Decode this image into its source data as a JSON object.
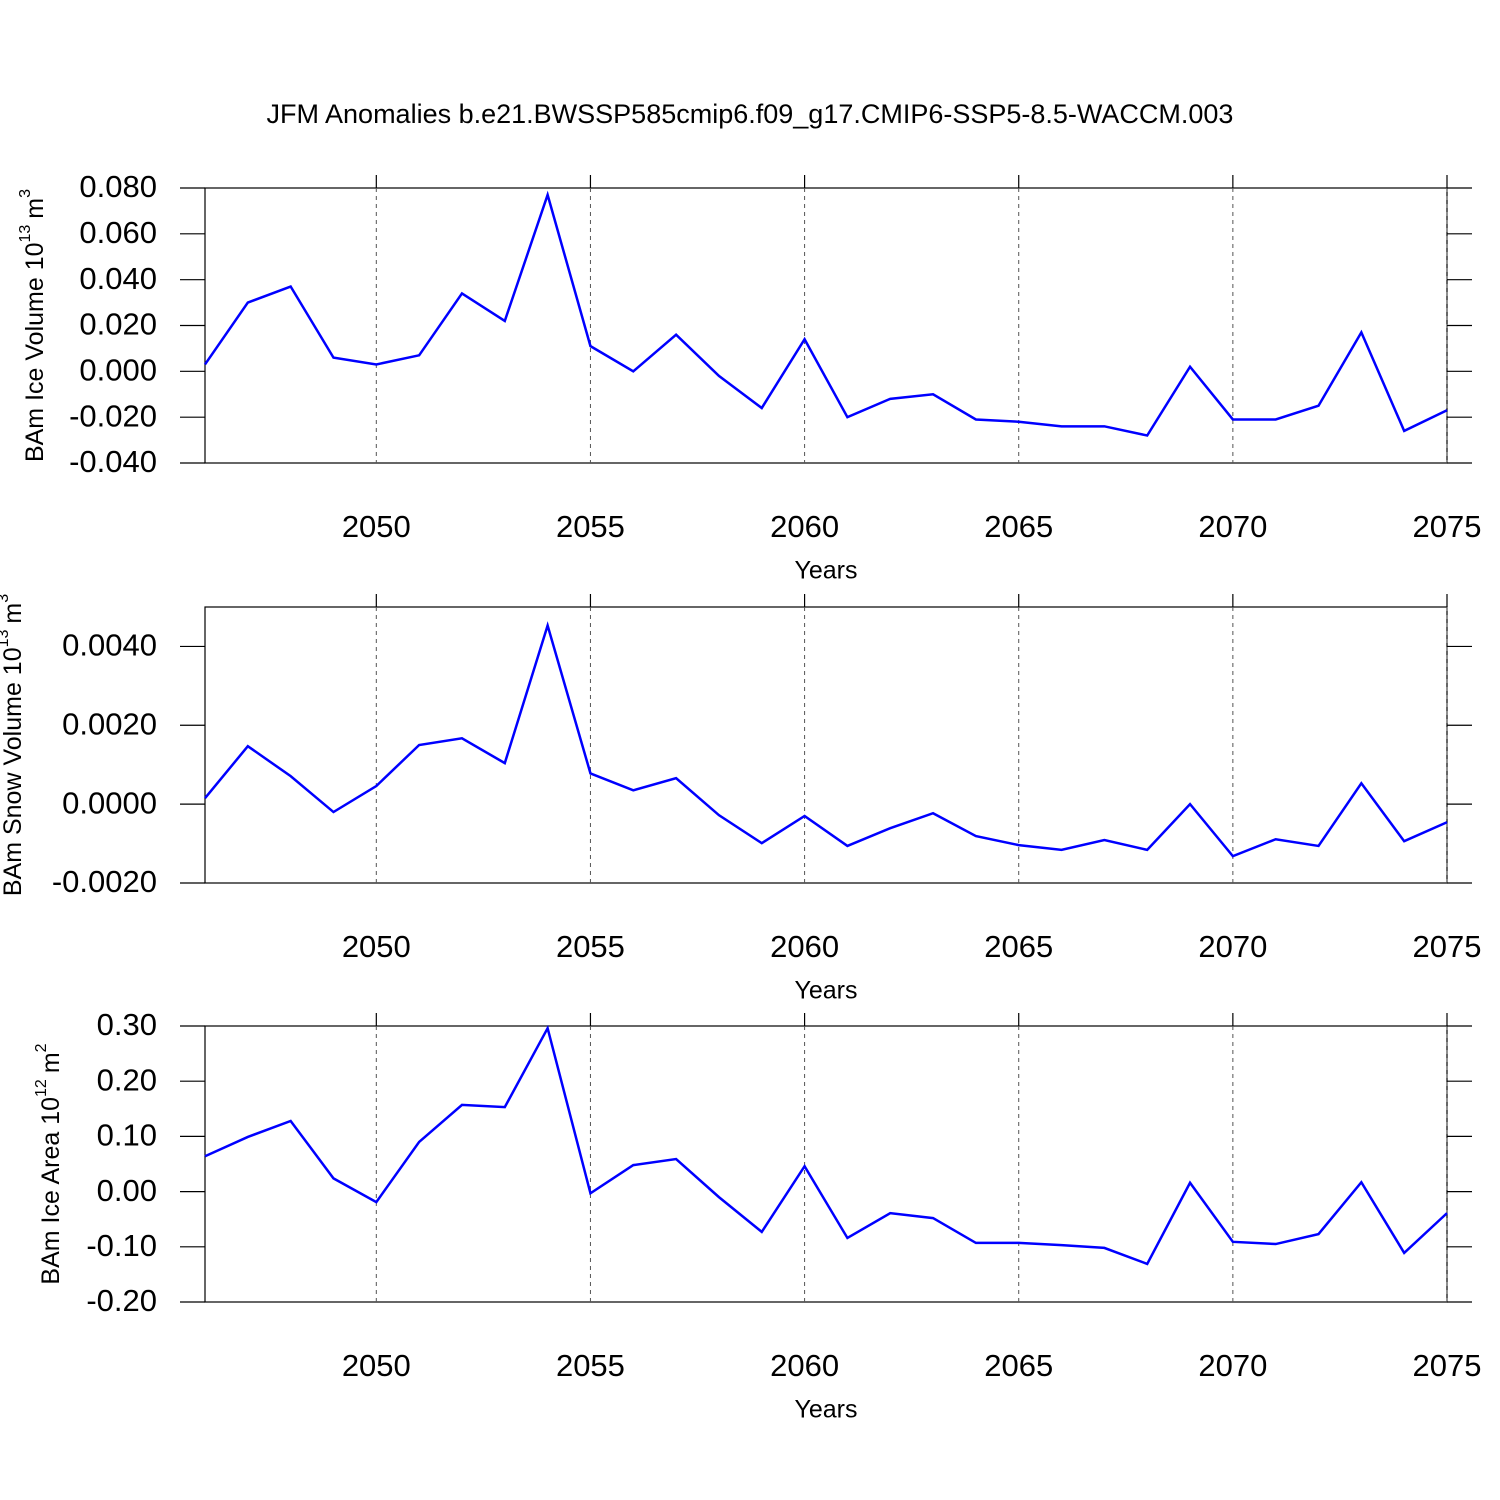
{
  "chart_data": [
    {
      "type": "line",
      "title": "JFM Anomalies b.e21.BWSSP585cmip6.f09_g17.CMIP6-SSP5-8.5-WACCM.003",
      "xlabel": "Years",
      "ylabel": {
        "text": "BAm Ice Volume 10",
        "power": "13",
        "unit": "m",
        "unit_power": "3"
      },
      "x": [
        2046,
        2047,
        2048,
        2049,
        2050,
        2051,
        2052,
        2053,
        2054,
        2055,
        2056,
        2057,
        2058,
        2059,
        2060,
        2061,
        2062,
        2063,
        2064,
        2065,
        2066,
        2067,
        2068,
        2069,
        2070,
        2071,
        2072,
        2073,
        2074,
        2075
      ],
      "series": [
        {
          "color": "#0000ff",
          "values": [
            0.003,
            0.03,
            0.037,
            0.006,
            0.003,
            0.007,
            0.034,
            0.022,
            0.077,
            0.011,
            0.0,
            0.016,
            -0.002,
            -0.016,
            0.014,
            -0.02,
            -0.012,
            -0.01,
            -0.021,
            -0.022,
            -0.024,
            -0.024,
            -0.028,
            0.002,
            -0.021,
            -0.021,
            -0.015,
            0.017,
            -0.026,
            -0.017
          ]
        }
      ],
      "xlim": [
        2046,
        2075
      ],
      "xticks": [
        2050,
        2055,
        2060,
        2065,
        2070,
        2075
      ],
      "ylim": [
        -0.04,
        0.08
      ],
      "yticks": [
        {
          "value": -0.04,
          "label": "-0.040"
        },
        {
          "value": -0.02,
          "label": "-0.020"
        },
        {
          "value": 0,
          "label": "0.000"
        },
        {
          "value": 0.02,
          "label": "0.020"
        },
        {
          "value": 0.04,
          "label": "0.040"
        },
        {
          "value": 0.06,
          "label": "0.060"
        },
        {
          "value": 0.08,
          "label": "0.080"
        }
      ],
      "grid": "x"
    },
    {
      "type": "line",
      "xlabel": "Years",
      "ylabel": {
        "text": "BAm Snow Volume 10",
        "power": "13",
        "unit": "m",
        "unit_power": "3"
      },
      "x": [
        2046,
        2047,
        2048,
        2049,
        2050,
        2051,
        2052,
        2053,
        2054,
        2055,
        2056,
        2057,
        2058,
        2059,
        2060,
        2061,
        2062,
        2063,
        2064,
        2065,
        2066,
        2067,
        2068,
        2069,
        2070,
        2071,
        2072,
        2073,
        2074,
        2075
      ],
      "series": [
        {
          "color": "#0000ff",
          "values": [
            0.00015,
            0.00147,
            0.00071,
            -0.0002,
            0.00046,
            0.0015,
            0.00167,
            0.00104,
            0.00453,
            0.00078,
            0.00035,
            0.00066,
            -0.00028,
            -0.00099,
            -0.0003,
            -0.00106,
            -0.00061,
            -0.00023,
            -0.00081,
            -0.00104,
            -0.00116,
            -0.00091,
            -0.00116,
            0.0,
            -0.00132,
            -0.00089,
            -0.00106,
            0.00053,
            -0.00094,
            -0.00046
          ]
        }
      ],
      "xlim": [
        2046,
        2075
      ],
      "xticks": [
        2050,
        2055,
        2060,
        2065,
        2070,
        2075
      ],
      "ylim": [
        -0.002,
        0.005
      ],
      "yticks": [
        {
          "value": -0.002,
          "label": "-0.0020"
        },
        {
          "value": 0,
          "label": "0.0000"
        },
        {
          "value": 0.002,
          "label": "0.0020"
        },
        {
          "value": 0.004,
          "label": "0.0040"
        }
      ],
      "grid": "x"
    },
    {
      "type": "line",
      "xlabel": "Years",
      "ylabel": {
        "text": "BAm Ice Area 10",
        "power": "12",
        "unit": "m",
        "unit_power": "2"
      },
      "x": [
        2046,
        2047,
        2048,
        2049,
        2050,
        2051,
        2052,
        2053,
        2054,
        2055,
        2056,
        2057,
        2058,
        2059,
        2060,
        2061,
        2062,
        2063,
        2064,
        2065,
        2066,
        2067,
        2068,
        2069,
        2070,
        2071,
        2072,
        2073,
        2074,
        2075
      ],
      "series": [
        {
          "color": "#0000ff",
          "values": [
            0.064,
            0.099,
            0.128,
            0.024,
            -0.019,
            0.09,
            0.157,
            0.153,
            0.296,
            -0.003,
            0.048,
            0.059,
            -0.01,
            -0.073,
            0.046,
            -0.084,
            -0.039,
            -0.048,
            -0.093,
            -0.093,
            -0.097,
            -0.102,
            -0.131,
            0.016,
            -0.091,
            -0.095,
            -0.077,
            0.017,
            -0.111,
            -0.039
          ]
        }
      ],
      "xlim": [
        2046,
        2075
      ],
      "xticks": [
        2050,
        2055,
        2060,
        2065,
        2070,
        2075
      ],
      "ylim": [
        -0.2,
        0.3
      ],
      "yticks": [
        {
          "value": -0.2,
          "label": "-0.20"
        },
        {
          "value": -0.1,
          "label": "-0.10"
        },
        {
          "value": 0,
          "label": "0.00"
        },
        {
          "value": 0.1,
          "label": "0.10"
        },
        {
          "value": 0.2,
          "label": "0.20"
        },
        {
          "value": 0.3,
          "label": "0.30"
        }
      ],
      "grid": "x"
    }
  ]
}
